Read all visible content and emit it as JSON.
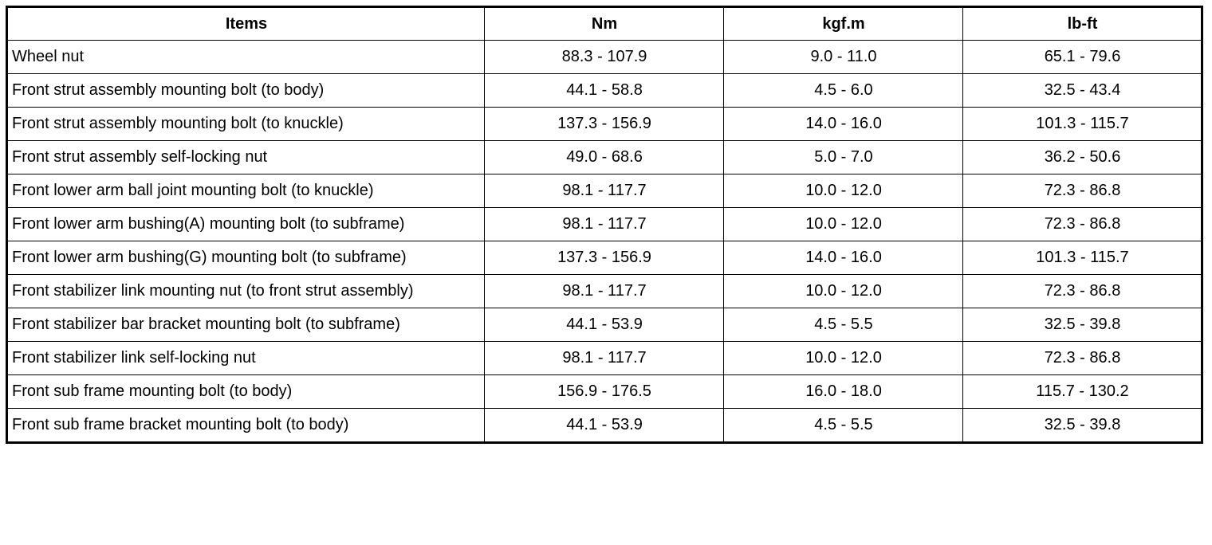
{
  "table": {
    "header": [
      "Items",
      "Nm",
      "kgf.m",
      "lb-ft"
    ],
    "rows": [
      [
        "Wheel nut",
        "88.3 - 107.9",
        "9.0 - 11.0",
        "65.1 - 79.6"
      ],
      [
        "Front strut assembly mounting bolt (to body)",
        "44.1 - 58.8",
        "4.5 - 6.0",
        "32.5 - 43.4"
      ],
      [
        "Front strut assembly mounting bolt (to knuckle)",
        "137.3 - 156.9",
        "14.0 - 16.0",
        "101.3 - 115.7"
      ],
      [
        "Front strut assembly self-locking nut",
        "49.0 - 68.6",
        "5.0 - 7.0",
        "36.2 - 50.6"
      ],
      [
        "Front lower arm ball joint mounting bolt (to knuckle)",
        "98.1 - 117.7",
        "10.0 - 12.0",
        "72.3 - 86.8"
      ],
      [
        "Front lower arm bushing(A) mounting bolt (to subframe)",
        "98.1 - 117.7",
        "10.0 - 12.0",
        "72.3 - 86.8"
      ],
      [
        "Front lower arm bushing(G) mounting bolt (to subframe)",
        "137.3 - 156.9",
        "14.0 - 16.0",
        "101.3 - 115.7"
      ],
      [
        "Front stabilizer link mounting nut (to front strut assembly)",
        "98.1 - 117.7",
        "10.0 - 12.0",
        "72.3 - 86.8"
      ],
      [
        "Front stabilizer bar bracket mounting bolt (to subframe)",
        "44.1 - 53.9",
        "4.5 - 5.5",
        "32.5 - 39.8"
      ],
      [
        "Front stabilizer link self-locking nut",
        "98.1 - 117.7",
        "10.0 - 12.0",
        "72.3 - 86.8"
      ],
      [
        "Front sub frame mounting bolt (to body)",
        "156.9 - 176.5",
        "16.0 - 18.0",
        "115.7 - 130.2"
      ],
      [
        "Front sub frame bracket mounting bolt (to body)",
        "44.1 - 53.9",
        "4.5 - 5.5",
        "32.5 - 39.8"
      ]
    ]
  }
}
